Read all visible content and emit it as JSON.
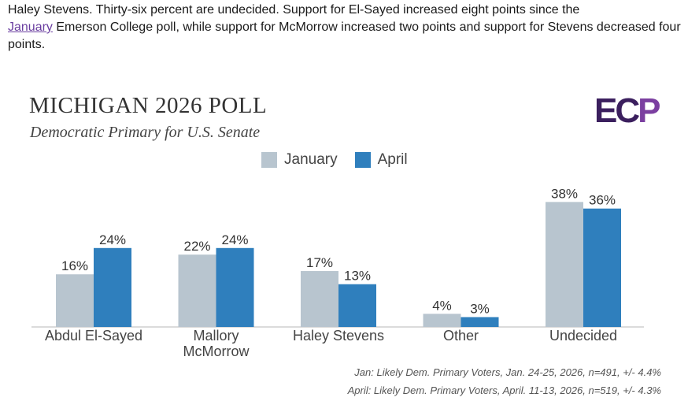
{
  "intro": {
    "line1": "Haley Stevens. Thirty-six percent are undecided. Support for El-Sayed increased eight points since the",
    "link": "January",
    "line2": " Emerson College poll, while support for McMorrow increased two points and support for Stevens decreased four points."
  },
  "logo": {
    "text_main": "EC",
    "text_accent": "P"
  },
  "colors": {
    "january": "#b8c5cf",
    "april": "#2f7fbd",
    "axis": "#cfcfcf"
  },
  "chart_data": {
    "type": "bar",
    "title": "MICHIGAN 2026 POLL",
    "subtitle": "Democratic Primary for U.S. Senate",
    "categories": [
      [
        "Abdul El-Sayed"
      ],
      [
        "Mallory",
        "McMorrow"
      ],
      [
        "Haley Stevens"
      ],
      [
        "Other"
      ],
      [
        "Undecided"
      ]
    ],
    "series": [
      {
        "name": "January",
        "values": [
          16,
          22,
          17,
          4,
          38
        ],
        "labels": [
          "16%",
          "22%",
          "17%",
          "4%",
          "38%"
        ]
      },
      {
        "name": "April",
        "values": [
          24,
          24,
          13,
          3,
          36
        ],
        "labels": [
          "24%",
          "24%",
          "13%",
          "3%",
          "36%"
        ]
      }
    ],
    "ylim": [
      0,
      40
    ],
    "legend_position": "top-center",
    "grid": false
  },
  "footnotes": [
    "Jan: Likely Dem. Primary Voters, Jan. 24-25, 2026, n=491, +/- 4.4%",
    "April: Likely Dem. Primary Voters, April. 11-13, 2026, n=519, +/- 4.3%"
  ]
}
